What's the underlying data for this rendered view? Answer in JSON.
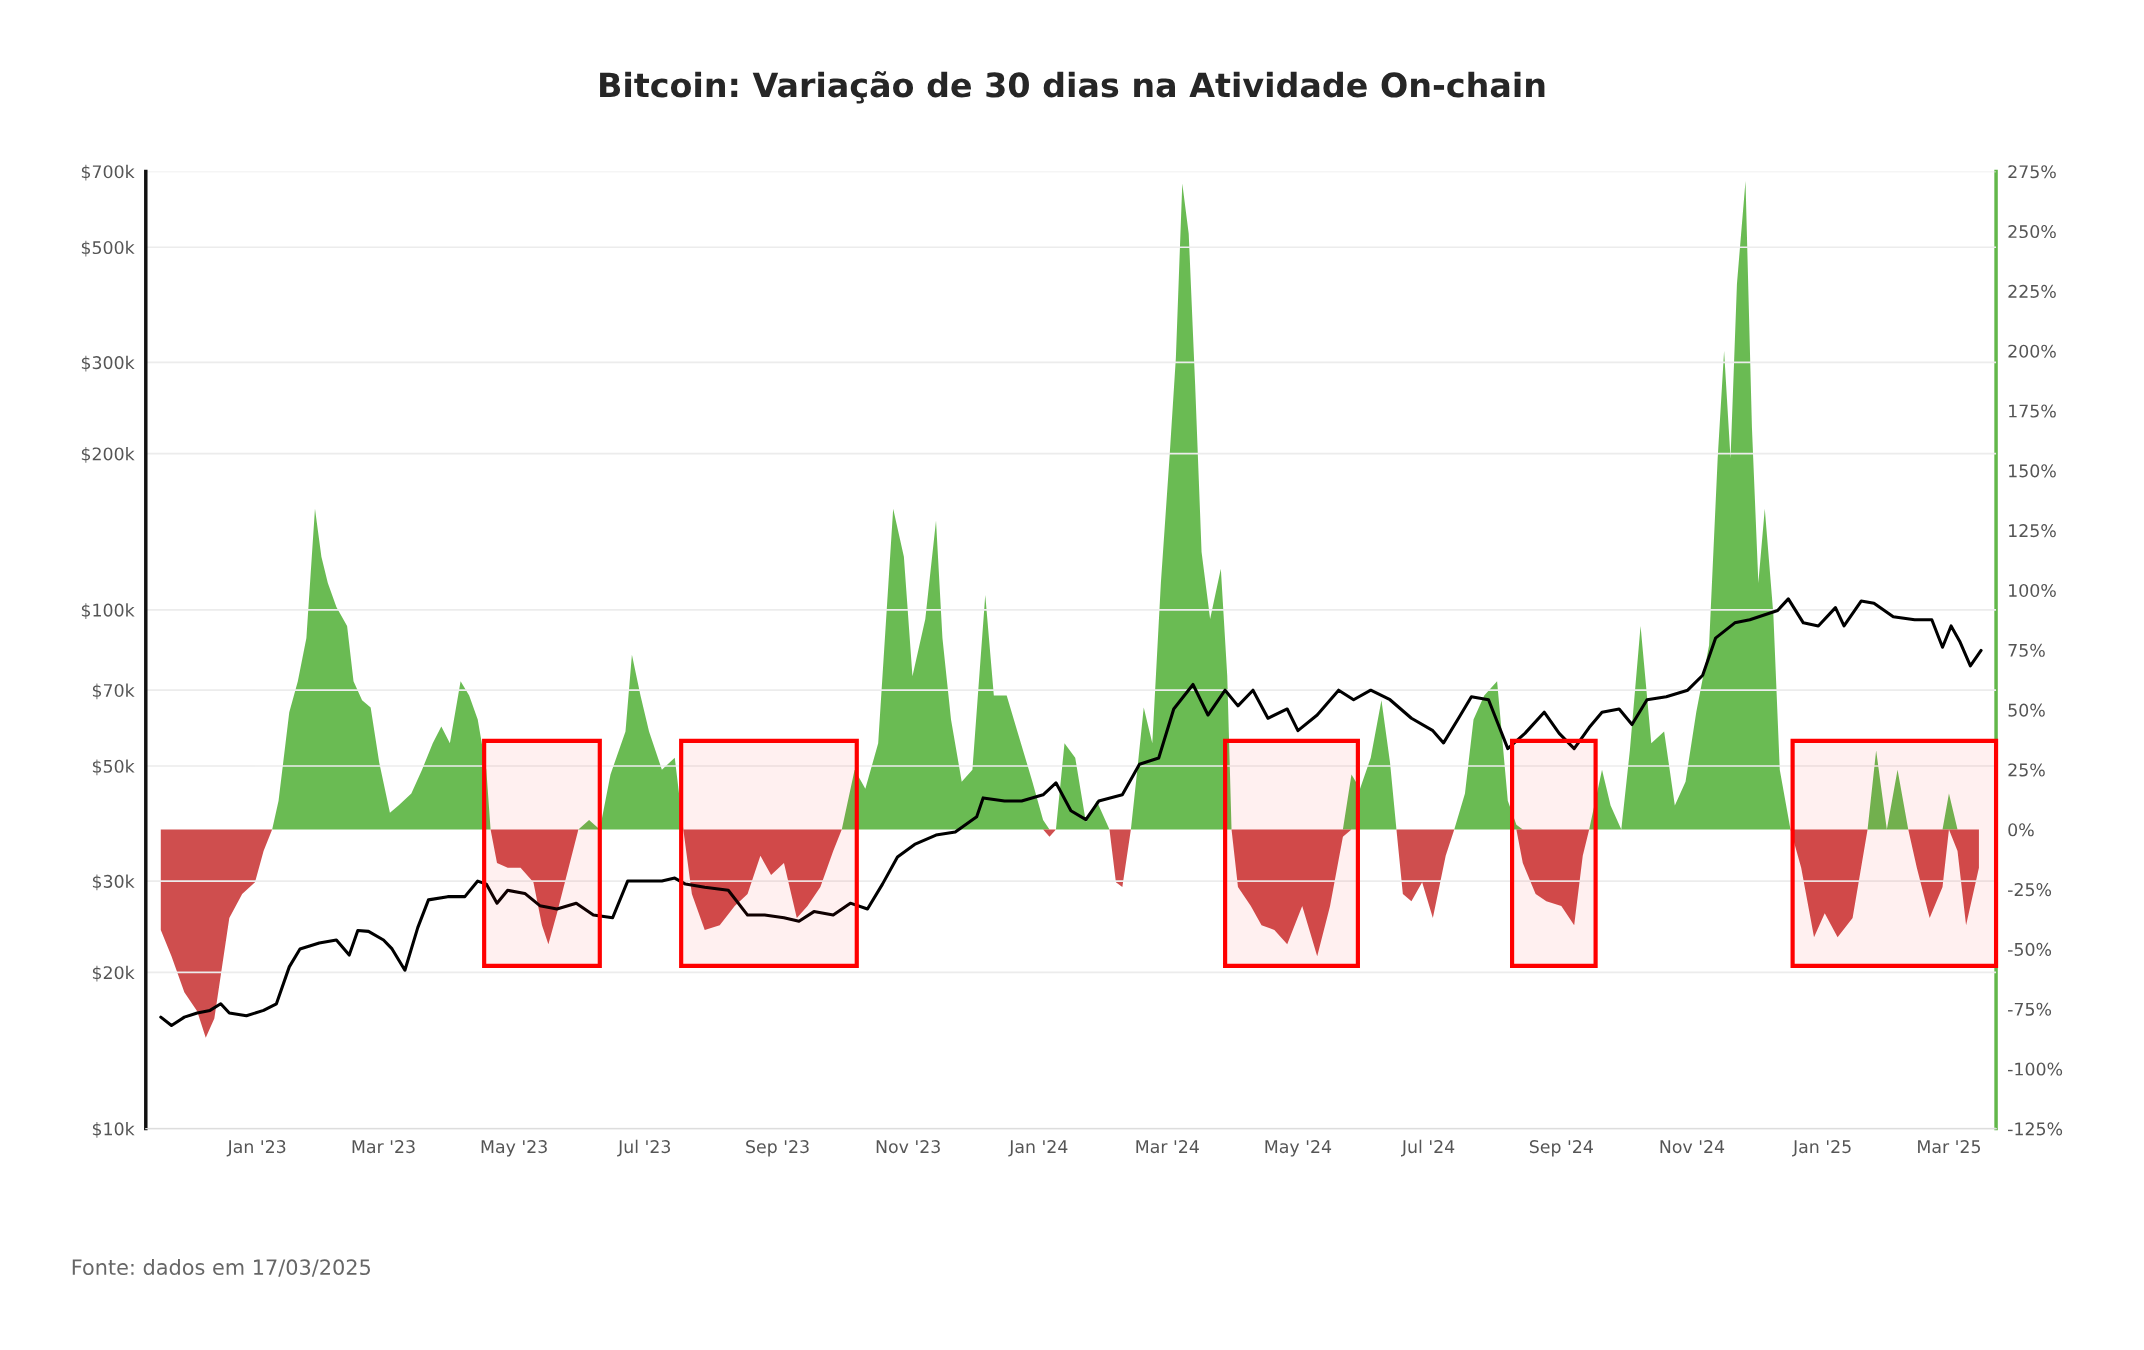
{
  "chart_data": {
    "type": "area",
    "title": "Bitcoin: Variação de 30 dias na Atividade On-chain",
    "annotations": [
      "Fonte: dados em 17/03/2025"
    ],
    "x": [
      "2022-11-17",
      "2022-11-22",
      "2022-11-28",
      "2022-12-04",
      "2022-12-08",
      "2022-12-12",
      "2022-12-15",
      "2022-12-19",
      "2022-12-25",
      "2022-12-31",
      "2023-01-04",
      "2023-01-08",
      "2023-01-11",
      "2023-01-16",
      "2023-01-20",
      "2023-01-24",
      "2023-01-28",
      "2023-01-31",
      "2023-02-03",
      "2023-02-07",
      "2023-02-12",
      "2023-02-15",
      "2023-02-19",
      "2023-02-23",
      "2023-02-27",
      "2023-03-04",
      "2023-03-08",
      "2023-03-14",
      "2023-03-19",
      "2023-03-24",
      "2023-03-28",
      "2023-04-01",
      "2023-04-06",
      "2023-04-10",
      "2023-04-14",
      "2023-04-18",
      "2023-04-20",
      "2023-04-23",
      "2023-04-28",
      "2023-05-04",
      "2023-05-10",
      "2023-05-14",
      "2023-05-17",
      "2023-05-21",
      "2023-05-27",
      "2023-05-31",
      "2023-06-05",
      "2023-06-10",
      "2023-06-15",
      "2023-06-22",
      "2023-06-25",
      "2023-06-29",
      "2023-07-03",
      "2023-07-09",
      "2023-07-15",
      "2023-07-19",
      "2023-07-23",
      "2023-07-29",
      "2023-08-05",
      "2023-08-12",
      "2023-08-18",
      "2023-08-24",
      "2023-08-29",
      "2023-09-04",
      "2023-09-10",
      "2023-09-15",
      "2023-09-21",
      "2023-09-27",
      "2023-10-01",
      "2023-10-07",
      "2023-10-12",
      "2023-10-18",
      "2023-10-25",
      "2023-10-30",
      "2023-11-03",
      "2023-11-09",
      "2023-11-14",
      "2023-11-17",
      "2023-11-21",
      "2023-11-26",
      "2023-12-01",
      "2023-12-07",
      "2023-12-11",
      "2023-12-17",
      "2023-12-22",
      "2023-12-29",
      "2024-01-03",
      "2024-01-06",
      "2024-01-09",
      "2024-01-13",
      "2024-01-18",
      "2024-01-23",
      "2024-01-28",
      "2024-02-03",
      "2024-02-06",
      "2024-02-09",
      "2024-02-13",
      "2024-02-16",
      "2024-02-19",
      "2024-02-23",
      "2024-02-27",
      "2024-03-02",
      "2024-03-05",
      "2024-03-08",
      "2024-03-11",
      "2024-03-14",
      "2024-03-17",
      "2024-03-21",
      "2024-03-26",
      "2024-03-29",
      "2024-03-31",
      "2024-04-03",
      "2024-04-09",
      "2024-04-14",
      "2024-04-20",
      "2024-04-26",
      "2024-05-03",
      "2024-05-10",
      "2024-05-16",
      "2024-05-22",
      "2024-05-26",
      "2024-05-30",
      "2024-06-04",
      "2024-06-09",
      "2024-06-13",
      "2024-06-16",
      "2024-06-19",
      "2024-06-23",
      "2024-06-28",
      "2024-07-03",
      "2024-07-09",
      "2024-07-13",
      "2024-07-18",
      "2024-07-22",
      "2024-07-27",
      "2024-08-02",
      "2024-08-07",
      "2024-08-11",
      "2024-08-14",
      "2024-08-20",
      "2024-08-25",
      "2024-09-01",
      "2024-09-07",
      "2024-09-11",
      "2024-09-14",
      "2024-09-20",
      "2024-09-24",
      "2024-09-29",
      "2024-10-03",
      "2024-10-08",
      "2024-10-13",
      "2024-10-19",
      "2024-10-24",
      "2024-10-29",
      "2024-11-03",
      "2024-11-09",
      "2024-11-13",
      "2024-11-16",
      "2024-11-19",
      "2024-11-22",
      "2024-11-26",
      "2024-11-29",
      "2024-12-02",
      "2024-12-05",
      "2024-12-09",
      "2024-12-12",
      "2024-12-17",
      "2024-12-22",
      "2024-12-28",
      "2025-01-02",
      "2025-01-08",
      "2025-01-15",
      "2025-01-22",
      "2025-01-26",
      "2025-01-31",
      "2025-02-05",
      "2025-02-10",
      "2025-02-14",
      "2025-02-20",
      "2025-02-26",
      "2025-03-01",
      "2025-03-05",
      "2025-03-09",
      "2025-03-15"
    ],
    "series": [
      {
        "axis": "y2",
        "color": "#62b74a",
        "values": [
          0,
          0,
          0,
          0,
          0,
          0,
          0,
          0,
          0,
          0,
          0,
          0,
          12,
          49,
          62,
          80,
          134,
          114,
          103,
          93,
          85,
          62,
          54,
          51,
          28,
          7,
          10,
          15,
          25,
          36,
          43,
          36,
          62,
          56,
          46,
          25,
          0,
          0,
          0,
          0,
          0,
          0,
          0,
          0,
          0,
          0,
          4,
          0,
          23,
          41,
          73,
          56,
          41,
          25,
          30,
          0,
          0,
          0,
          0,
          0,
          0,
          0,
          0,
          0,
          0,
          0,
          0,
          0,
          0,
          25,
          17,
          36,
          134,
          114,
          64,
          88,
          129,
          80,
          46,
          20,
          25,
          98,
          56,
          56,
          41,
          20,
          4,
          0,
          0,
          36,
          30,
          3,
          12,
          0,
          0,
          0,
          0,
          25,
          51,
          36,
          103,
          155,
          197,
          270,
          249,
          186,
          116,
          88,
          109,
          64,
          0,
          0,
          0,
          0,
          0,
          0,
          0,
          0,
          0,
          0,
          23,
          17,
          30,
          54,
          28,
          0,
          0,
          0,
          0,
          0,
          0,
          0,
          15,
          46,
          56,
          62,
          12,
          2,
          0,
          0,
          0,
          0,
          0,
          0,
          0,
          25,
          10,
          0,
          33,
          85,
          36,
          41,
          10,
          20,
          49,
          77,
          155,
          200,
          155,
          228,
          271,
          168,
          103,
          134,
          90,
          25,
          0,
          0,
          0,
          0,
          0,
          0,
          0,
          33,
          0,
          25,
          0,
          0,
          0,
          0,
          15,
          0,
          0,
          0
        ]
      },
      {
        "axis": "y2",
        "color": "#cc4444",
        "values": [
          -42,
          -53,
          -68,
          -76,
          -87,
          -79,
          -61,
          -37,
          -27,
          -22,
          -9,
          0,
          0,
          0,
          0,
          0,
          0,
          0,
          0,
          0,
          0,
          0,
          0,
          0,
          0,
          0,
          0,
          0,
          0,
          0,
          0,
          0,
          0,
          0,
          0,
          0,
          0,
          -14,
          -16,
          -16,
          -22,
          -40,
          -48,
          -35,
          -14,
          0,
          0,
          0,
          0,
          0,
          0,
          0,
          0,
          0,
          0,
          0,
          -27,
          -42,
          -40,
          -32,
          -27,
          -11,
          -19,
          -14,
          -37,
          -32,
          -24,
          -9,
          0,
          0,
          0,
          0,
          0,
          0,
          0,
          0,
          0,
          0,
          0,
          0,
          0,
          0,
          0,
          0,
          0,
          0,
          0,
          -3,
          0,
          0,
          0,
          0,
          0,
          0,
          -22,
          -24,
          0,
          0,
          0,
          0,
          0,
          0,
          0,
          0,
          0,
          0,
          0,
          0,
          0,
          0,
          0,
          -24,
          -32,
          -40,
          -42,
          -48,
          -32,
          -53,
          -32,
          -3,
          0,
          0,
          0,
          0,
          0,
          0,
          -27,
          -30,
          -22,
          -37,
          -11,
          0,
          0,
          0,
          0,
          0,
          0,
          0,
          -14,
          -27,
          -30,
          -32,
          -40,
          -11,
          0,
          0,
          0,
          0,
          0,
          0,
          0,
          0,
          0,
          0,
          0,
          0,
          0,
          0,
          0,
          0,
          0,
          0,
          0,
          0,
          0,
          0,
          0,
          -16,
          -45,
          -35,
          -45,
          -37,
          0,
          0,
          0,
          0,
          0,
          -16,
          -37,
          -24,
          0,
          -9,
          -40,
          -16
        ]
      },
      {
        "type": "line",
        "axis": "y",
        "color": "#000000",
        "x": [
          "2022-11-17",
          "2022-11-22",
          "2022-11-28",
          "2022-12-04",
          "2022-12-10",
          "2022-12-15",
          "2022-12-19",
          "2022-12-27",
          "2023-01-04",
          "2023-01-10",
          "2023-01-16",
          "2023-01-21",
          "2023-01-30",
          "2023-02-07",
          "2023-02-13",
          "2023-02-17",
          "2023-02-22",
          "2023-03-01",
          "2023-03-05",
          "2023-03-11",
          "2023-03-17",
          "2023-03-22",
          "2023-03-31",
          "2023-04-08",
          "2023-04-14",
          "2023-04-18",
          "2023-04-23",
          "2023-04-28",
          "2023-05-06",
          "2023-05-13",
          "2023-05-21",
          "2023-05-30",
          "2023-06-07",
          "2023-06-16",
          "2023-06-23",
          "2023-06-30",
          "2023-07-09",
          "2023-07-15",
          "2023-07-20",
          "2023-07-29",
          "2023-08-09",
          "2023-08-18",
          "2023-08-26",
          "2023-09-04",
          "2023-09-11",
          "2023-09-18",
          "2023-09-27",
          "2023-10-05",
          "2023-10-13",
          "2023-10-20",
          "2023-10-27",
          "2023-11-04",
          "2023-11-14",
          "2023-11-23",
          "2023-12-03",
          "2023-12-06",
          "2023-12-16",
          "2023-12-24",
          "2024-01-03",
          "2024-01-09",
          "2024-01-16",
          "2024-01-23",
          "2024-01-29",
          "2024-02-09",
          "2024-02-17",
          "2024-02-26",
          "2024-03-04",
          "2024-03-13",
          "2024-03-20",
          "2024-03-28",
          "2024-04-03",
          "2024-04-10",
          "2024-04-17",
          "2024-04-26",
          "2024-05-01",
          "2024-05-10",
          "2024-05-20",
          "2024-05-27",
          "2024-06-04",
          "2024-06-13",
          "2024-06-23",
          "2024-07-03",
          "2024-07-08",
          "2024-07-15",
          "2024-07-21",
          "2024-07-29",
          "2024-08-07",
          "2024-08-15",
          "2024-08-24",
          "2024-08-31",
          "2024-09-07",
          "2024-09-14",
          "2024-09-20",
          "2024-09-28",
          "2024-10-04",
          "2024-10-11",
          "2024-10-20",
          "2024-10-30",
          "2024-11-06",
          "2024-11-12",
          "2024-11-21",
          "2024-11-28",
          "2024-12-11",
          "2024-12-16",
          "2024-12-23",
          "2024-12-30",
          "2025-01-07",
          "2025-01-11",
          "2025-01-19",
          "2025-01-25",
          "2025-02-03",
          "2025-02-13",
          "2025-02-21",
          "2025-02-26",
          "2025-03-02",
          "2025-03-06",
          "2025-03-11",
          "2025-03-16"
        ],
        "values": [
          16400,
          15800,
          16400,
          16700,
          16900,
          17400,
          16700,
          16500,
          16900,
          17400,
          20500,
          22200,
          22800,
          23100,
          21600,
          24100,
          24000,
          23100,
          22200,
          20200,
          24400,
          27600,
          28000,
          28000,
          30000,
          29600,
          27200,
          28800,
          28400,
          26900,
          26500,
          27200,
          25800,
          25500,
          30000,
          30000,
          30000,
          30400,
          29600,
          29200,
          28800,
          25800,
          25800,
          25500,
          25100,
          26200,
          25800,
          27200,
          26500,
          29600,
          33400,
          35300,
          36800,
          37300,
          39900,
          43400,
          42800,
          42800,
          44000,
          46400,
          41000,
          39400,
          42800,
          44000,
          50400,
          51800,
          64400,
          71800,
          62700,
          70000,
          65300,
          70000,
          61800,
          64400,
          58500,
          62700,
          70000,
          67100,
          70000,
          67100,
          61800,
          58500,
          55400,
          61800,
          68000,
          67100,
          54000,
          57800,
          63500,
          57800,
          54000,
          59300,
          63500,
          64400,
          60100,
          67100,
          68000,
          70000,
          74800,
          88200,
          94400,
          95700,
          99700,
          105000,
          94400,
          93100,
          101000,
          93100,
          104000,
          103000,
          97000,
          95700,
          95700,
          84700,
          93100,
          87000,
          78000,
          83500
        ]
      }
    ],
    "xlim": [
      "2022-11-10",
      "2025-03-23"
    ],
    "xticks": [
      {
        "value": "2023-01-01",
        "label": "Jan '23"
      },
      {
        "value": "2023-03-01",
        "label": "Mar '23"
      },
      {
        "value": "2023-05-01",
        "label": "May '23"
      },
      {
        "value": "2023-07-01",
        "label": "Jul '23"
      },
      {
        "value": "2023-09-01",
        "label": "Sep '23"
      },
      {
        "value": "2023-11-01",
        "label": "Nov '23"
      },
      {
        "value": "2024-01-01",
        "label": "Jan '24"
      },
      {
        "value": "2024-03-01",
        "label": "Mar '24"
      },
      {
        "value": "2024-05-01",
        "label": "May '24"
      },
      {
        "value": "2024-07-01",
        "label": "Jul '24"
      },
      {
        "value": "2024-09-01",
        "label": "Sep '24"
      },
      {
        "value": "2024-11-01",
        "label": "Nov '24"
      },
      {
        "value": "2025-01-01",
        "label": "Jan '25"
      },
      {
        "value": "2025-03-01",
        "label": "Mar '25"
      }
    ],
    "log": "y",
    "ylim": [
      10000,
      700000
    ],
    "yticks": [
      {
        "value": 10000,
        "label": "$10k"
      },
      {
        "value": 20000,
        "label": "$20k"
      },
      {
        "value": 30000,
        "label": "$30k"
      },
      {
        "value": 50000,
        "label": "$50k"
      },
      {
        "value": 70000,
        "label": "$70k"
      },
      {
        "value": 100000,
        "label": "$100k"
      },
      {
        "value": 200000,
        "label": "$200k"
      },
      {
        "value": 300000,
        "label": "$300k"
      },
      {
        "value": 500000,
        "label": "$500k"
      },
      {
        "value": 700000,
        "label": "$700k"
      }
    ],
    "y2lim": [
      -125,
      275
    ],
    "y2ticks": [
      {
        "value": -125,
        "label": "-125%"
      },
      {
        "value": -100,
        "label": "-100%"
      },
      {
        "value": -75,
        "label": "-75%"
      },
      {
        "value": -50,
        "label": "-50%"
      },
      {
        "value": -25,
        "label": "-25%"
      },
      {
        "value": 0,
        "label": "0%"
      },
      {
        "value": 25,
        "label": "25%"
      },
      {
        "value": 50,
        "label": "50%"
      },
      {
        "value": 75,
        "label": "75%"
      },
      {
        "value": 100,
        "label": "100%"
      },
      {
        "value": 125,
        "label": "125%"
      },
      {
        "value": 150,
        "label": "150%"
      },
      {
        "value": 175,
        "label": "175%"
      },
      {
        "value": 200,
        "label": "200%"
      },
      {
        "value": 225,
        "label": "225%"
      },
      {
        "value": 250,
        "label": "250%"
      },
      {
        "value": 275,
        "label": "275%"
      }
    ],
    "grid": "y",
    "bands": [
      {
        "axis": "x",
        "from": "2023-04-17",
        "to": "2023-06-10",
        "color": "#ff0000"
      },
      {
        "axis": "x",
        "from": "2023-07-18",
        "to": "2023-10-08",
        "color": "#ff0000"
      },
      {
        "axis": "x",
        "from": "2024-03-28",
        "to": "2024-05-29",
        "color": "#ff0000"
      },
      {
        "axis": "x",
        "from": "2024-08-09",
        "to": "2024-09-17",
        "color": "#ff0000"
      },
      {
        "axis": "x",
        "from": "2024-12-18",
        "to": "2025-03-23",
        "color": "#ff0000"
      }
    ]
  }
}
